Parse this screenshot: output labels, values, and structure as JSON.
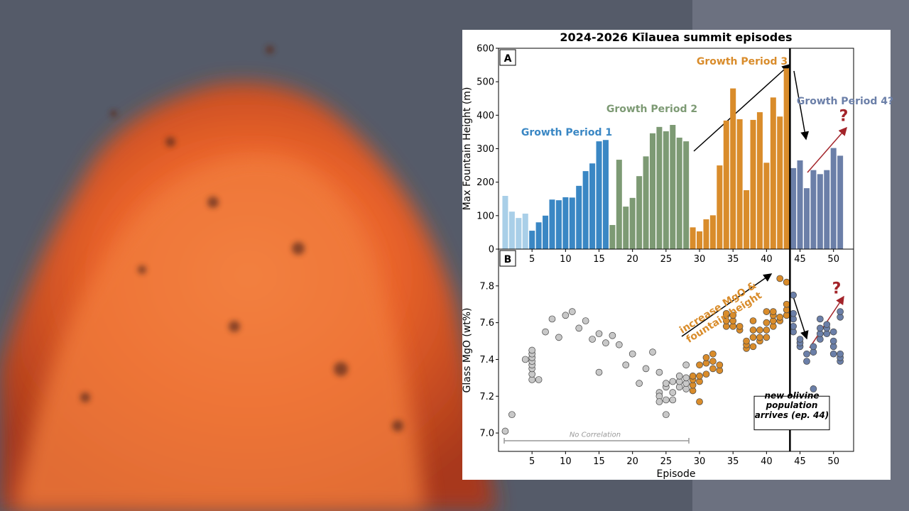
{
  "chart_data": [
    {
      "type": "bar",
      "title": "2024-2026 Kīlauea summit episodes",
      "panel": "A",
      "ylabel": "Max Fountain Height (m)",
      "xlim": [
        0,
        53
      ],
      "xticks": [
        5,
        10,
        15,
        20,
        25,
        30,
        35,
        40,
        45,
        50
      ],
      "ylim": [
        0,
        600
      ],
      "yticks": [
        0,
        100,
        200,
        300,
        400,
        500,
        600
      ],
      "vline": 43.5,
      "series": [
        {
          "color": "#a9cfe8",
          "x": [
            1,
            2,
            3,
            4
          ],
          "values": [
            159,
            112,
            93,
            106
          ]
        },
        {
          "color": "#3a87c4",
          "x": [
            5,
            6,
            7,
            8,
            9,
            10,
            11,
            12,
            13,
            14,
            15,
            16
          ],
          "values": [
            55,
            80,
            100,
            148,
            146,
            155,
            154,
            189,
            233,
            256,
            322,
            326
          ]
        },
        {
          "color": "#7d9a74",
          "x": [
            17,
            18,
            19,
            20,
            21,
            22,
            23,
            24,
            25,
            26,
            27,
            28
          ],
          "values": [
            72,
            267,
            127,
            153,
            218,
            277,
            346,
            365,
            352,
            371,
            333,
            322
          ]
        },
        {
          "color": "#d98c2b",
          "x": [
            29,
            30,
            31,
            32,
            33,
            34,
            35,
            36,
            37,
            38,
            39,
            40,
            41,
            42,
            43
          ],
          "values": [
            65,
            53,
            89,
            101,
            250,
            384,
            480,
            388,
            176,
            386,
            409,
            258,
            453,
            396,
            540
          ]
        },
        {
          "color": "#6b7fa8",
          "x": [
            44,
            45,
            46,
            47,
            48,
            49,
            50,
            51
          ],
          "values": [
            242,
            265,
            182,
            236,
            224,
            236,
            302,
            279
          ]
        }
      ],
      "annotations": [
        {
          "lines": [
            "Growth Period 1"
          ],
          "color": "#3a87c4"
        },
        {
          "lines": [
            "Growth Period 2"
          ],
          "color": "#7d9a74"
        },
        {
          "lines": [
            "Growth Period 3"
          ],
          "color": "#d98c2b"
        },
        {
          "lines": [
            "Growth Period 4?"
          ],
          "color": "#6b7fa8"
        },
        {
          "lines": [
            "?"
          ],
          "color": "#a3242a"
        }
      ]
    },
    {
      "type": "scatter",
      "panel": "B",
      "ylabel": "Glass MgO (wt%)",
      "xlabel": "Episode",
      "xlim": [
        0,
        53
      ],
      "xticks": [
        5,
        10,
        15,
        20,
        25,
        30,
        35,
        40,
        45,
        50
      ],
      "ylim": [
        6.9,
        8.0
      ],
      "yticks": [
        {
          "value": 7,
          "label": "7.0"
        },
        7.2,
        7.4,
        7.6,
        7.8
      ],
      "vline": 43.5,
      "series": [
        {
          "color": "#c8c8c8",
          "x": [
            1,
            2,
            4,
            5,
            5,
            5,
            5,
            5,
            5,
            5,
            5,
            6,
            7,
            8,
            9,
            10,
            11,
            12,
            13,
            14,
            15,
            15,
            16,
            17,
            18,
            19,
            20,
            21,
            22,
            23,
            24,
            24,
            24,
            24,
            25,
            25,
            25,
            25,
            26,
            26,
            26,
            27,
            27,
            27,
            28,
            28,
            28,
            28
          ],
          "values": [
            7.01,
            7.1,
            7.4,
            7.29,
            7.32,
            7.35,
            7.37,
            7.39,
            7.41,
            7.43,
            7.45,
            7.29,
            7.55,
            7.62,
            7.52,
            7.64,
            7.66,
            7.57,
            7.61,
            7.51,
            7.54,
            7.33,
            7.49,
            7.53,
            7.48,
            7.37,
            7.43,
            7.27,
            7.35,
            7.44,
            7.33,
            7.22,
            7.2,
            7.17,
            7.1,
            7.18,
            7.25,
            7.27,
            7.18,
            7.22,
            7.28,
            7.25,
            7.28,
            7.31,
            7.24,
            7.27,
            7.3,
            7.37
          ]
        },
        {
          "color": "#d98c2b",
          "x": [
            29,
            29,
            29,
            29,
            30,
            30,
            30,
            30,
            31,
            31,
            31,
            32,
            32,
            32,
            33,
            33,
            34,
            34,
            34,
            34,
            35,
            35,
            35,
            36,
            36,
            37,
            37,
            37,
            38,
            38,
            38,
            38,
            39,
            39,
            39,
            40,
            40,
            40,
            40,
            41,
            41,
            41,
            41,
            42,
            42,
            42,
            43,
            43,
            43,
            43
          ],
          "values": [
            7.23,
            7.26,
            7.29,
            7.31,
            7.17,
            7.28,
            7.31,
            7.37,
            7.32,
            7.38,
            7.41,
            7.35,
            7.39,
            7.43,
            7.34,
            7.37,
            7.58,
            7.61,
            7.64,
            7.65,
            7.58,
            7.61,
            7.64,
            7.56,
            7.58,
            7.46,
            7.48,
            7.5,
            7.47,
            7.52,
            7.56,
            7.61,
            7.5,
            7.52,
            7.56,
            7.52,
            7.56,
            7.6,
            7.66,
            7.58,
            7.61,
            7.64,
            7.66,
            7.61,
            7.63,
            7.84,
            7.64,
            7.67,
            7.7,
            7.82
          ]
        },
        {
          "color": "#6b7fa8",
          "x": [
            44,
            44,
            44,
            44,
            44,
            45,
            45,
            45,
            46,
            46,
            47,
            47,
            47,
            48,
            48,
            48,
            48,
            49,
            49,
            49,
            50,
            50,
            50,
            50,
            51,
            51,
            51,
            51,
            51
          ],
          "values": [
            7.55,
            7.58,
            7.62,
            7.65,
            7.75,
            7.47,
            7.49,
            7.51,
            7.39,
            7.43,
            7.24,
            7.44,
            7.47,
            7.51,
            7.54,
            7.57,
            7.62,
            7.54,
            7.57,
            7.59,
            7.43,
            7.47,
            7.5,
            7.55,
            7.39,
            7.41,
            7.43,
            7.63,
            7.66
          ]
        }
      ],
      "annotations": [
        {
          "lines": [
            "increase MgO &",
            "fountain height"
          ],
          "color": "#d98c2b"
        },
        {
          "lines": [
            "No Correlation"
          ],
          "color": "#999999"
        },
        {
          "lines": [
            "new olivine",
            "population",
            "arrives (ep. 44)"
          ],
          "color": "#000000"
        },
        {
          "lines": [
            "?"
          ],
          "color": "#a3242a"
        }
      ]
    }
  ]
}
